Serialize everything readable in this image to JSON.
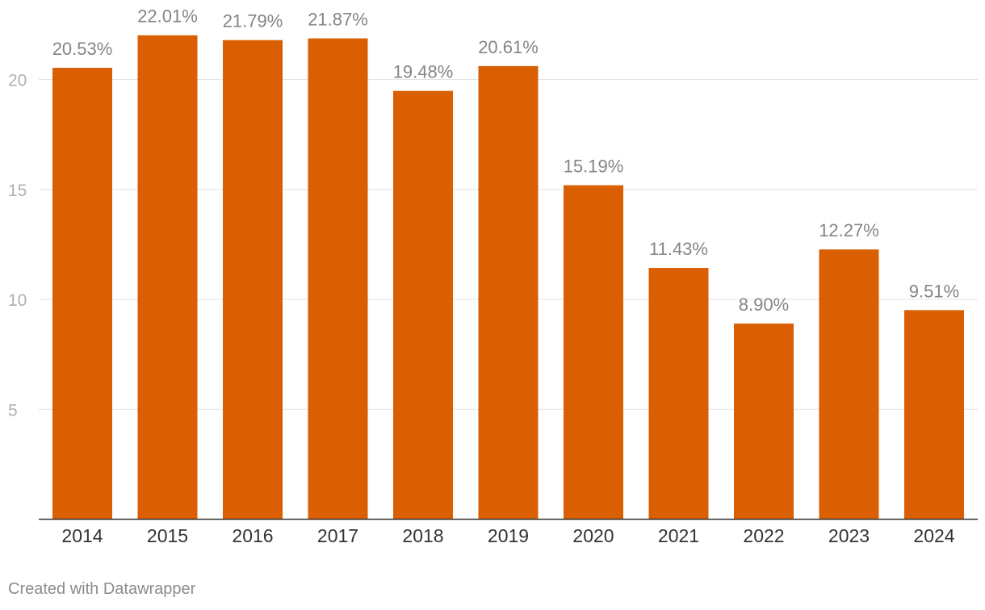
{
  "chart_data": {
    "type": "bar",
    "categories": [
      "2014",
      "2015",
      "2016",
      "2017",
      "2018",
      "2019",
      "2020",
      "2021",
      "2022",
      "2023",
      "2024"
    ],
    "values": [
      20.53,
      22.01,
      21.79,
      21.87,
      19.48,
      20.61,
      15.19,
      11.43,
      8.9,
      12.27,
      9.51
    ],
    "value_labels": [
      "20.53%",
      "22.01%",
      "21.79%",
      "21.87%",
      "19.48%",
      "20.61%",
      "15.19%",
      "11.43%",
      "8.90%",
      "12.27%",
      "9.51%"
    ],
    "y_ticks": [
      5,
      10,
      15,
      20
    ],
    "ylim": [
      0,
      23.5
    ],
    "grid": true,
    "legend": "none",
    "bar_color": "#D95F02",
    "title": "",
    "xlabel": "",
    "ylabel": ""
  },
  "footer": {
    "credit": "Created with Datawrapper"
  }
}
